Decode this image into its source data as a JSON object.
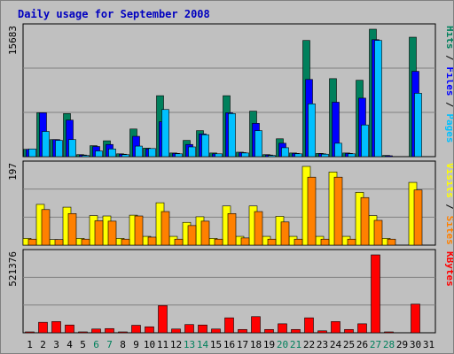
{
  "title": "Daily usage for September 2008",
  "colors": {
    "hits": "#00805c",
    "files": "#0000ff",
    "pages": "#00c0ff",
    "visits": "#ffff00",
    "sites": "#ff8000",
    "kbytes": "#ff0000",
    "weekend_label": "#00805c",
    "weekday_label": "#000000",
    "panel_bg": "#c0c0c0",
    "grid": "#808080"
  },
  "chart_data": [
    {
      "type": "bar",
      "ymax_label": "15683",
      "ylim": [
        0,
        15683
      ],
      "legend_segments": [
        {
          "text": "Pages",
          "color": "#00c0ff"
        },
        {
          "text": " / ",
          "color": "#000000"
        },
        {
          "text": "Files",
          "color": "#0000ff"
        },
        {
          "text": " / ",
          "color": "#000000"
        },
        {
          "text": "Hits",
          "color": "#00805c"
        }
      ],
      "series": [
        {
          "name": "Hits",
          "color": "#00805c",
          "values": [
            900,
            5400,
            2100,
            5300,
            250,
            1350,
            1950,
            350,
            3400,
            1050,
            7500,
            450,
            2000,
            3200,
            450,
            7500,
            550,
            5600,
            250,
            2200,
            450,
            14300,
            400,
            9600,
            450,
            9400,
            15683,
            150,
            0,
            14700,
            0
          ]
        },
        {
          "name": "Files",
          "color": "#0000ff",
          "values": [
            900,
            5400,
            2100,
            4500,
            200,
            1250,
            1500,
            300,
            2500,
            950,
            4300,
            400,
            1500,
            2800,
            350,
            5400,
            500,
            4100,
            200,
            1650,
            400,
            9500,
            350,
            6700,
            400,
            7200,
            14400,
            100,
            0,
            10500,
            0
          ]
        },
        {
          "name": "Pages",
          "color": "#00c0ff",
          "values": [
            950,
            3100,
            2000,
            2100,
            150,
            700,
            950,
            250,
            1300,
            1000,
            5800,
            350,
            1200,
            2700,
            350,
            5300,
            450,
            3200,
            150,
            1100,
            350,
            6500,
            300,
            1650,
            350,
            3900,
            14300,
            0,
            0,
            7800,
            0
          ]
        }
      ]
    },
    {
      "type": "bar",
      "ymax_label": "197",
      "ylim": [
        0,
        197
      ],
      "legend_segments": [
        {
          "text": "Sites",
          "color": "#ff8000"
        },
        {
          "text": " / ",
          "color": "#000000"
        },
        {
          "text": "Visits",
          "color": "#ffff00"
        }
      ],
      "series": [
        {
          "name": "Visits",
          "color": "#ffff00",
          "values": [
            17,
            102,
            14,
            95,
            17,
            74,
            73,
            17,
            75,
            22,
            106,
            22,
            57,
            71,
            17,
            98,
            22,
            98,
            22,
            72,
            22,
            197,
            22,
            183,
            22,
            132,
            74,
            17,
            0,
            157,
            0
          ]
        },
        {
          "name": "Sites",
          "color": "#ff8000",
          "values": [
            15,
            89,
            14,
            79,
            15,
            61,
            60,
            15,
            73,
            20,
            84,
            15,
            49,
            60,
            15,
            79,
            18,
            84,
            15,
            58,
            15,
            170,
            15,
            170,
            15,
            119,
            62,
            15,
            0,
            138,
            0
          ]
        }
      ]
    },
    {
      "type": "bar",
      "ymax_label": "521376",
      "ylim": [
        0,
        521376
      ],
      "legend_segments": [
        {
          "text": "KBytes",
          "color": "#ff0000"
        }
      ],
      "series": [
        {
          "name": "KBytes",
          "color": "#ff0000",
          "values": [
            5000,
            70000,
            75000,
            52000,
            6000,
            25000,
            28000,
            5000,
            50000,
            40000,
            182000,
            25000,
            55000,
            52000,
            25000,
            100000,
            22000,
            108000,
            22000,
            60000,
            22000,
            100000,
            13000,
            75000,
            22000,
            60000,
            521376,
            5000,
            0,
            192000,
            0
          ]
        }
      ]
    }
  ],
  "x_days": [
    "1",
    "2",
    "3",
    "4",
    "5",
    "6",
    "7",
    "8",
    "9",
    "10",
    "11",
    "12",
    "13",
    "14",
    "15",
    "16",
    "17",
    "18",
    "19",
    "20",
    "21",
    "22",
    "23",
    "24",
    "25",
    "26",
    "27",
    "28",
    "29",
    "30",
    "31"
  ],
  "weekend_days": [
    "6",
    "7",
    "13",
    "14",
    "20",
    "21",
    "27",
    "28"
  ]
}
